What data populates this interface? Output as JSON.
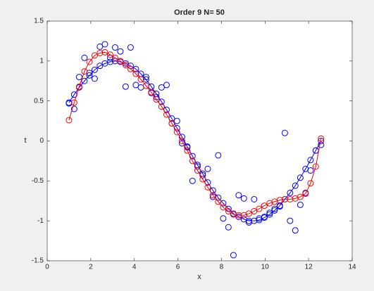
{
  "chart_data": {
    "type": "line",
    "title": "Order 9 N= 50",
    "x_label": "x",
    "y_label": "t",
    "x": [
      1.0,
      1.24,
      1.47,
      1.71,
      1.94,
      2.18,
      2.42,
      2.65,
      2.89,
      3.12,
      3.36,
      3.6,
      3.83,
      4.07,
      4.3,
      4.54,
      4.78,
      5.01,
      5.25,
      5.48,
      5.72,
      5.96,
      6.19,
      6.43,
      6.67,
      6.9,
      7.14,
      7.37,
      7.61,
      7.85,
      8.08,
      8.32,
      8.55,
      8.79,
      9.03,
      9.26,
      9.5,
      9.73,
      9.97,
      10.21,
      10.44,
      10.68,
      10.91,
      11.15,
      11.39,
      11.62,
      11.86,
      12.09,
      12.33,
      12.57
    ],
    "series": [
      {
        "color": "#0000ff",
        "line": false,
        "marker": "o",
        "values": [
          0.47,
          0.4,
          0.8,
          1.04,
          0.85,
          0.78,
          1.18,
          1.21,
          1.04,
          1.17,
          1.12,
          0.68,
          1.17,
          0.7,
          0.67,
          0.8,
          0.6,
          0.55,
          0.67,
          0.7,
          0.22,
          0.25,
          -0.03,
          -0.08,
          -0.5,
          -0.32,
          -0.43,
          -0.35,
          -0.7,
          -0.18,
          -0.97,
          -1.08,
          -1.43,
          -0.68,
          -0.72,
          -1.02,
          -0.73,
          -0.97,
          -0.95,
          -0.9,
          -0.85,
          -0.82,
          0.1,
          -1.0,
          -1.12,
          -0.8,
          -0.65,
          -0.37,
          -0.12,
          -0.05
        ]
      },
      {
        "color": "#0000ff",
        "line": true,
        "marker": "o",
        "values": [
          0.48,
          0.58,
          0.67,
          0.75,
          0.82,
          0.89,
          0.94,
          0.97,
          0.99,
          1.0,
          0.99,
          0.97,
          0.94,
          0.9,
          0.84,
          0.77,
          0.68,
          0.59,
          0.49,
          0.39,
          0.28,
          0.16,
          0.05,
          -0.07,
          -0.19,
          -0.3,
          -0.41,
          -0.52,
          -0.62,
          -0.71,
          -0.78,
          -0.85,
          -0.91,
          -0.95,
          -0.98,
          -1.0,
          -1.0,
          -0.99,
          -0.96,
          -0.92,
          -0.87,
          -0.81,
          -0.73,
          -0.65,
          -0.56,
          -0.46,
          -0.35,
          -0.24,
          -0.12,
          0.0
        ]
      },
      {
        "color": "#ff0000",
        "line": true,
        "marker": "o",
        "values": [
          0.26,
          0.48,
          0.68,
          0.87,
          0.99,
          1.07,
          1.1,
          1.11,
          1.08,
          1.04,
          1.0,
          0.95,
          0.9,
          0.84,
          0.77,
          0.69,
          0.61,
          0.52,
          0.43,
          0.33,
          0.22,
          0.11,
          0.0,
          -0.12,
          -0.25,
          -0.37,
          -0.48,
          -0.58,
          -0.68,
          -0.76,
          -0.83,
          -0.88,
          -0.92,
          -0.93,
          -0.93,
          -0.91,
          -0.88,
          -0.85,
          -0.81,
          -0.78,
          -0.76,
          -0.74,
          -0.73,
          -0.73,
          -0.72,
          -0.7,
          -0.66,
          -0.53,
          -0.32,
          0.03
        ]
      }
    ],
    "xlim": [
      0,
      14
    ],
    "xticks": [
      0,
      2,
      4,
      6,
      8,
      10,
      12,
      14
    ],
    "ylim": [
      -1.5,
      1.5
    ],
    "yticks": [
      -1.5,
      -1,
      -0.5,
      0,
      0.5,
      1,
      1.5
    ],
    "grid": false
  }
}
